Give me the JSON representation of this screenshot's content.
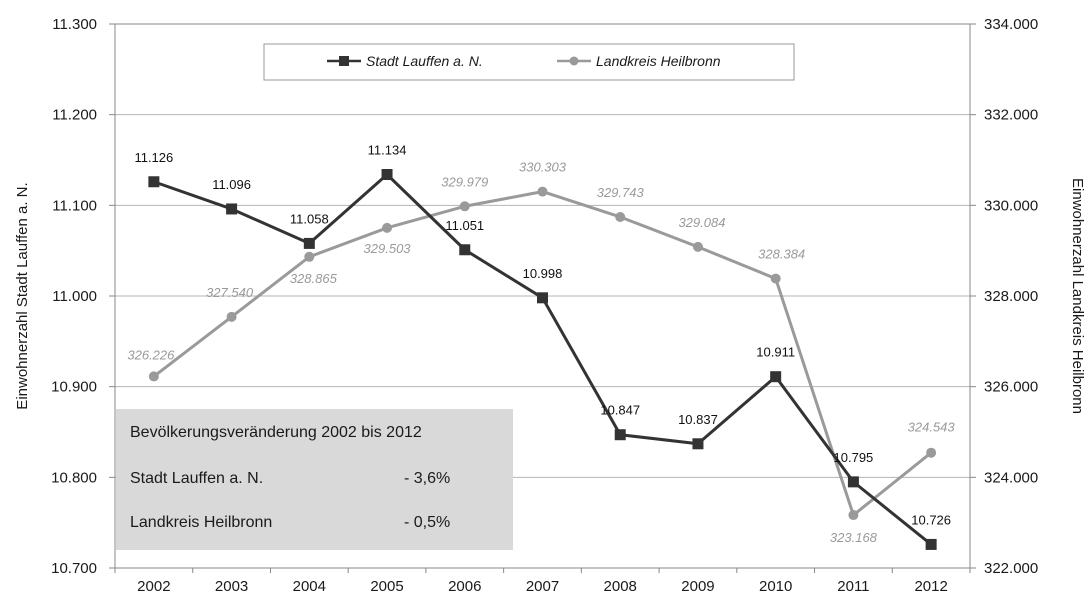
{
  "chart_data": {
    "type": "line",
    "categories": [
      "2002",
      "2003",
      "2004",
      "2005",
      "2006",
      "2007",
      "2008",
      "2009",
      "2010",
      "2011",
      "2012"
    ],
    "series": [
      {
        "name": "Stadt Lauffen a. N.",
        "axis": "left",
        "color": "#333333",
        "marker": "square",
        "values": [
          11126,
          11096,
          11058,
          11134,
          11051,
          10998,
          10847,
          10837,
          10911,
          10795,
          10726
        ],
        "labels": [
          "11.126",
          "11.096",
          "11.058",
          "11.134",
          "11.051",
          "10.998",
          "10.847",
          "10.837",
          "10.911",
          "10.795",
          "10.726"
        ]
      },
      {
        "name": "Landkreis Heilbronn",
        "axis": "right",
        "color": "#9a9a9a",
        "marker": "circle",
        "values": [
          326226,
          327540,
          328865,
          329503,
          329979,
          330303,
          329743,
          329084,
          328384,
          323168,
          324543
        ],
        "labels": [
          "326.226",
          "327.540",
          "328.865",
          "329.503",
          "329.979",
          "330.303",
          "329.743",
          "329.084",
          "328.384",
          "323.168",
          "324.543"
        ]
      }
    ],
    "y_left": {
      "label": "Einwohnerzahl  Stadt Lauffen a. N.",
      "ylim": [
        10700,
        11300
      ],
      "ticks": [
        10700,
        10800,
        10900,
        11000,
        11100,
        11200,
        11300
      ],
      "tick_labels": [
        "10.700",
        "10.800",
        "10.900",
        "11.000",
        "11.100",
        "11.200",
        "11.300"
      ]
    },
    "y_right": {
      "label": "Einwohnerzahl Landkreis Heilbronn",
      "ylim": [
        322000,
        334000
      ],
      "ticks": [
        322000,
        324000,
        326000,
        328000,
        330000,
        332000,
        334000
      ],
      "tick_labels": [
        "322.000",
        "324.000",
        "326.000",
        "328.000",
        "330.000",
        "332.000",
        "334.000"
      ]
    },
    "grid": true,
    "legend": {
      "placement": "top-center"
    },
    "info_box": {
      "title": "Bevölkerungsveränderung 2002 bis 2012",
      "rows": [
        {
          "label": "Stadt Lauffen a. N.",
          "value": "- 3,6%"
        },
        {
          "label": "Landkreis Heilbronn",
          "value": "- 0,5%"
        }
      ]
    }
  }
}
